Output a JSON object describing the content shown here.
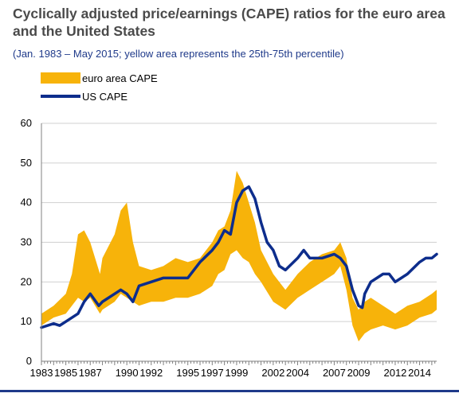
{
  "header": {
    "title": "Cyclically adjusted price/earnings (CAPE) ratios for the euro area and the United States",
    "subtitle": "(Jan. 1983 – May 2015; yellow area represents the 25th-75th percentile)"
  },
  "colors": {
    "euro_band": "#f7b30a",
    "us_line": "#0d2d8c",
    "grid": "#d0d0d0",
    "axis": "#808080"
  },
  "chart_data": {
    "type": "line",
    "title": "Cyclically adjusted price/earnings (CAPE) ratios for the euro area and the United States",
    "xlabel": "",
    "ylabel": "",
    "xlim": [
      1983,
      2015.4
    ],
    "ylim": [
      0,
      60
    ],
    "yticks": [
      0,
      10,
      20,
      30,
      40,
      50,
      60
    ],
    "xticks": [
      "1983",
      "1985",
      "1987",
      "1990",
      "1992",
      "1995",
      "1997",
      "1999",
      "2002",
      "2004",
      "2007",
      "2009",
      "2012",
      "2014"
    ],
    "grid": true,
    "legend_position": "top-left",
    "series": [
      {
        "name": "euro area CAPE",
        "type": "band",
        "x": [
          1983,
          1984,
          1985,
          1985.5,
          1986,
          1986.5,
          1987,
          1987.8,
          1988,
          1989,
          1989.5,
          1990,
          1990.5,
          1991,
          1992,
          1993,
          1994,
          1995,
          1996,
          1997,
          1997.5,
          1998,
          1998.5,
          1999,
          1999.5,
          2000,
          2000.5,
          2001,
          2002,
          2002.5,
          2003,
          2004,
          2005,
          2006,
          2007,
          2007.5,
          2008,
          2008.5,
          2009,
          2009.5,
          2010,
          2011,
          2012,
          2013,
          2014,
          2015,
          2015.4
        ],
        "low": [
          9,
          11,
          12,
          14,
          16,
          15,
          16,
          12,
          13,
          15,
          17,
          16,
          15,
          14,
          15,
          15,
          16,
          16,
          17,
          19,
          22,
          23,
          27,
          28,
          26,
          25,
          22,
          20,
          15,
          14,
          13,
          16,
          18,
          20,
          22,
          24,
          18,
          9,
          5,
          7,
          8,
          9,
          8,
          9,
          11,
          12,
          13
        ],
        "high": [
          12,
          14,
          17,
          22,
          32,
          33,
          30,
          22,
          26,
          32,
          38,
          40,
          30,
          24,
          23,
          24,
          26,
          25,
          26,
          30,
          33,
          34,
          38,
          48,
          45,
          40,
          35,
          28,
          22,
          20,
          18,
          22,
          25,
          27,
          28,
          30,
          26,
          16,
          13,
          15,
          16,
          14,
          12,
          14,
          15,
          17,
          18
        ]
      },
      {
        "name": "US CAPE",
        "type": "line",
        "x": [
          1983,
          1984,
          1984.5,
          1985,
          1986,
          1986.5,
          1987,
          1987.7,
          1988,
          1989,
          1989.5,
          1990,
          1990.5,
          1991,
          1992,
          1993,
          1994,
          1995,
          1996,
          1997,
          1997.5,
          1998,
          1998.5,
          1999,
          1999.5,
          2000,
          2000.5,
          2001,
          2001.5,
          2002,
          2002.5,
          2003,
          2004,
          2004.5,
          2005,
          2006,
          2007,
          2007.5,
          2008,
          2008.5,
          2009,
          2009.3,
          2009.5,
          2010,
          2010.5,
          2011,
          2011.5,
          2012,
          2012.5,
          2013,
          2014,
          2014.5,
          2015,
          2015.4
        ],
        "y": [
          8.5,
          9.5,
          9,
          10,
          12,
          15,
          17,
          14,
          15,
          17,
          18,
          17,
          15,
          19,
          20,
          21,
          21,
          21,
          25,
          28,
          30,
          33,
          32,
          40,
          43,
          44,
          41,
          35,
          30,
          28,
          24,
          23,
          26,
          28,
          26,
          26,
          27,
          26,
          24,
          18,
          14,
          13.5,
          17,
          20,
          21,
          22,
          22,
          20,
          21,
          22,
          25,
          26,
          26,
          27
        ]
      }
    ]
  }
}
